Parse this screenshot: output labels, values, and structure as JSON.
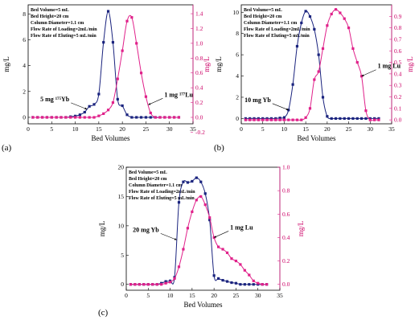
{
  "chart_data": [
    {
      "panel_label": "(a)",
      "type": "line",
      "xlabel": "Bed Volumes",
      "ylabel": "mg/L",
      "ylabel_right": "mg/L",
      "xlim": [
        0,
        35
      ],
      "xticks": [
        0,
        5,
        10,
        15,
        20,
        25,
        30,
        35
      ],
      "ylim": [
        -0.5,
        8.7
      ],
      "yticks": [
        0,
        2,
        4,
        6,
        8
      ],
      "ylim_right": [
        -0.087,
        1.52
      ],
      "yticks_right": [
        -0.2,
        0.0,
        0.2,
        0.4,
        0.6,
        0.8,
        1.0,
        1.2,
        1.4
      ],
      "info": [
        "Bed Volume=5 mL",
        "Bed Height=20 cm",
        "Column Diameter=1.1 cm",
        "Flow Rate of Loading=2mL/min",
        "Flow Rate of Eluting=5 mL/min"
      ],
      "annotations": [
        {
          "text": "5 mg ¹⁷⁵Yb",
          "series": 0,
          "at_x": 12.5
        },
        {
          "text": "1 mg ¹⁷⁷Lu",
          "series": 1,
          "at_x": 25.5
        }
      ],
      "series": [
        {
          "name": "5 mg ¹⁷⁵Yb",
          "axis": "left",
          "color": "#1a237e",
          "marker": "square",
          "x": [
            1,
            2,
            3,
            4,
            5,
            6,
            7,
            8,
            9,
            10,
            11,
            12,
            13,
            14,
            15,
            16,
            17,
            18,
            19,
            20,
            21,
            22,
            23,
            24,
            25,
            26,
            27,
            28,
            29,
            30,
            31,
            32
          ],
          "y": [
            0,
            0,
            0,
            0,
            0,
            0,
            0,
            0,
            0.05,
            0.1,
            0.2,
            0.4,
            0.85,
            1.0,
            1.8,
            5.8,
            8.2,
            5.8,
            1.4,
            0.9,
            0.2,
            0,
            0,
            0,
            0,
            0,
            0,
            0,
            0,
            0,
            0,
            0
          ]
        },
        {
          "name": "1 mg ¹⁷⁷Lu",
          "axis": "right",
          "color": "#e0218a",
          "marker": "square",
          "x": [
            1,
            2,
            3,
            4,
            5,
            6,
            7,
            8,
            9,
            10,
            11,
            12,
            13,
            14,
            15,
            16,
            17,
            18,
            19,
            20,
            21,
            22,
            23,
            24,
            25,
            26,
            27,
            28,
            29,
            30,
            31,
            32
          ],
          "y": [
            0,
            0,
            0,
            0,
            0,
            0,
            0,
            0,
            0,
            0,
            0,
            0,
            0,
            0,
            0.02,
            0.05,
            0.1,
            0.2,
            0.52,
            0.9,
            1.3,
            1.35,
            1.0,
            0.6,
            0.28,
            0.06,
            0,
            0,
            0,
            0,
            0,
            0
          ]
        }
      ]
    },
    {
      "panel_label": "(b)",
      "type": "line",
      "xlabel": "Bed Volumes",
      "ylabel": "mg/L",
      "ylabel_right": "mg/L",
      "xlim": [
        0,
        35
      ],
      "xticks": [
        0,
        5,
        10,
        15,
        20,
        25,
        30,
        35
      ],
      "ylim": [
        -0.5,
        10.7
      ],
      "yticks": [
        0,
        2,
        4,
        6,
        8,
        10
      ],
      "ylim_right": [
        -0.034,
        1.0
      ],
      "yticks_right": [
        0.0,
        0.1,
        0.2,
        0.3,
        0.4,
        0.5,
        0.6,
        0.7,
        0.8,
        0.9
      ],
      "info": [
        "Bed Volume=5 mL",
        "Bed Height=20 cm",
        "Column Diameter=1.1 cm",
        "Flow Rate of Loading=2mL/min",
        "Flow Rate of Eluting=5 mL/min"
      ],
      "annotations": [
        {
          "text": "10 mg Yb",
          "series": 0,
          "at_x": 11
        },
        {
          "text": "1 mg Lu",
          "series": 1,
          "at_x": 28
        }
      ],
      "series": [
        {
          "name": "10 mg Yb",
          "axis": "left",
          "color": "#1a237e",
          "marker": "square",
          "x": [
            1,
            2,
            3,
            4,
            5,
            6,
            7,
            8,
            9,
            10,
            11,
            12,
            13,
            14,
            15,
            16,
            17,
            18,
            19,
            20,
            21,
            22,
            23,
            24,
            25,
            26,
            27,
            28,
            29,
            30,
            31,
            32
          ],
          "y": [
            0,
            0,
            0,
            0,
            0,
            0,
            0,
            0,
            0.05,
            0.1,
            0.8,
            3.2,
            6.8,
            9.0,
            10.1,
            9.6,
            8.4,
            6.0,
            2.0,
            0.2,
            0,
            0,
            0,
            0,
            0,
            0,
            0,
            0,
            0,
            0,
            0,
            0
          ]
        },
        {
          "name": "1 mg Lu",
          "axis": "right",
          "color": "#e0218a",
          "marker": "square",
          "x": [
            1,
            2,
            3,
            4,
            5,
            6,
            7,
            8,
            9,
            10,
            11,
            12,
            13,
            14,
            15,
            16,
            17,
            18,
            19,
            20,
            21,
            22,
            23,
            24,
            25,
            26,
            27,
            28,
            29,
            30,
            31,
            32
          ],
          "y": [
            0,
            0,
            0,
            0,
            0,
            0,
            0,
            0,
            0,
            0,
            0,
            0,
            0,
            0,
            0.02,
            0.1,
            0.35,
            0.42,
            0.62,
            0.82,
            0.92,
            0.96,
            0.93,
            0.88,
            0.8,
            0.62,
            0.5,
            0.38,
            0.08,
            0,
            0,
            0
          ]
        }
      ]
    },
    {
      "panel_label": "(c)",
      "type": "line",
      "xlabel": "Bed Volumes",
      "ylabel": "mg/L",
      "ylabel_right": "mg/L",
      "xlim": [
        0,
        35
      ],
      "xticks": [
        0,
        5,
        10,
        15,
        20,
        25,
        30,
        35
      ],
      "ylim": [
        -1,
        20
      ],
      "yticks": [
        0,
        5,
        10,
        15,
        20
      ],
      "ylim_right": [
        -0.05,
        1.0
      ],
      "yticks_right": [
        0.0,
        0.2,
        0.4,
        0.6,
        0.8,
        1.0
      ],
      "info": [
        "Bed Volume=5 mL",
        "Bed Height=20 cm",
        "Column Diameter=1.1 cm",
        "Flow Rate of Loading=2mL/min",
        "Flow Rate of Eluting=5 mL/min"
      ],
      "annotations": [
        {
          "text": "20 mg Yb",
          "series": 0,
          "at_x": 11.5
        },
        {
          "text": "1 mg Lu",
          "series": 1,
          "at_x": 20
        }
      ],
      "series": [
        {
          "name": "20 mg Yb",
          "axis": "left",
          "color": "#1a237e",
          "marker": "square",
          "x": [
            1,
            2,
            3,
            4,
            5,
            6,
            7,
            8,
            9,
            10,
            11,
            12,
            13,
            14,
            15,
            16,
            17,
            18,
            19,
            20,
            21,
            22,
            23,
            24,
            25,
            26,
            27,
            28,
            29,
            30,
            31,
            32
          ],
          "y": [
            0,
            0,
            0,
            0,
            0,
            0,
            0,
            0.2,
            0.5,
            0.6,
            1.2,
            14.0,
            17.5,
            17.4,
            17.6,
            18.2,
            17.5,
            15.5,
            11.0,
            1.5,
            1.0,
            0.7,
            0.5,
            0.3,
            0.2,
            0,
            0,
            0,
            0,
            0,
            0,
            0
          ]
        },
        {
          "name": "1 mg Lu",
          "axis": "right",
          "color": "#e0218a",
          "marker": "square",
          "x": [
            1,
            2,
            3,
            4,
            5,
            6,
            7,
            8,
            9,
            10,
            11,
            12,
            13,
            14,
            15,
            16,
            17,
            18,
            19,
            20,
            21,
            22,
            23,
            24,
            25,
            26,
            27,
            28,
            29,
            30,
            31,
            32
          ],
          "y": [
            0,
            0,
            0,
            0,
            0,
            0,
            0,
            0,
            0.01,
            0.02,
            0.05,
            0.15,
            0.3,
            0.48,
            0.62,
            0.72,
            0.75,
            0.68,
            0.57,
            0.4,
            0.32,
            0.3,
            0.27,
            0.22,
            0.2,
            0.17,
            0.12,
            0.08,
            0.03,
            0.01,
            0,
            0
          ]
        }
      ]
    }
  ]
}
